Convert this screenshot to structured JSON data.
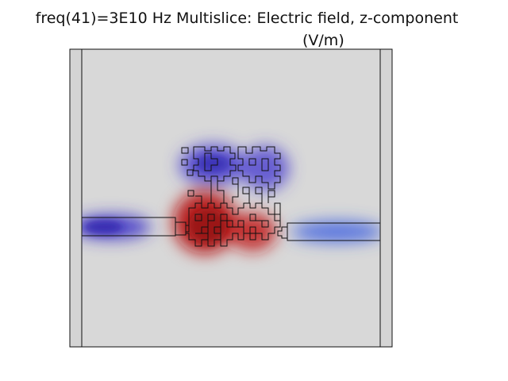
{
  "title": {
    "line1": "freq(41)=3E10 Hz Multislice: Electric field, z-component",
    "line2": "(V/m)"
  },
  "colors": {
    "background": "#d8d8d8",
    "positive": "#b31010",
    "negative": "#3a2fbf",
    "outline": "#111111"
  }
}
